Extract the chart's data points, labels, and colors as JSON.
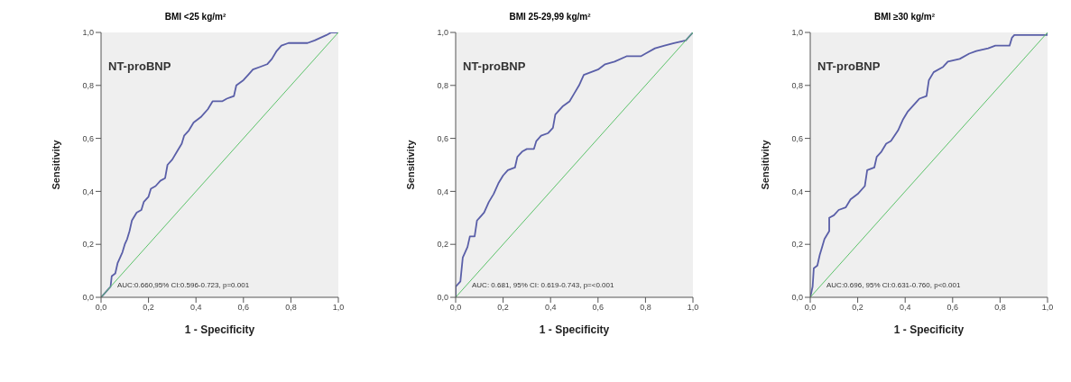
{
  "chart_data": [
    {
      "type": "line",
      "title": "BMI <25 kg/m²",
      "xlabel": "1 - Specificity",
      "ylabel": "Sensitivity",
      "annotations": [
        "NT-proBNP",
        "AUC:0.660,95% CI:0.596-0.723, p=0.001"
      ],
      "xlim": [
        0,
        1
      ],
      "ylim": [
        0,
        1
      ],
      "xticks": [
        {
          "value": 0,
          "label": "0,0"
        },
        {
          "value": 0.2,
          "label": "0,2"
        },
        {
          "value": 0.4,
          "label": "0,4"
        },
        {
          "value": 0.6,
          "label": "0,6"
        },
        {
          "value": 0.8,
          "label": "0,8"
        },
        {
          "value": 1,
          "label": "1,0"
        }
      ],
      "yticks": [
        {
          "value": 0,
          "label": "0,0"
        },
        {
          "value": 0.2,
          "label": "0,2"
        },
        {
          "value": 0.4,
          "label": "0,4"
        },
        {
          "value": 0.6,
          "label": "0,6"
        },
        {
          "value": 0.8,
          "label": "0,8"
        },
        {
          "value": 1,
          "label": "1,0"
        }
      ],
      "grid": false,
      "marker": "none",
      "series": [
        {
          "color": "#5a5fa8",
          "x": [
            0,
            0.01,
            0.03,
            0.04,
            0.045,
            0.06,
            0.07,
            0.09,
            0.1,
            0.11,
            0.12,
            0.13,
            0.15,
            0.17,
            0.18,
            0.2,
            0.21,
            0.23,
            0.25,
            0.27,
            0.28,
            0.3,
            0.32,
            0.34,
            0.35,
            0.37,
            0.39,
            0.42,
            0.45,
            0.47,
            0.51,
            0.53,
            0.56,
            0.57,
            0.6,
            0.62,
            0.64,
            0.67,
            0.7,
            0.72,
            0.74,
            0.76,
            0.79,
            0.87,
            0.9,
            0.95,
            0.97,
            1
          ],
          "values": [
            0,
            0.01,
            0.03,
            0.04,
            0.08,
            0.09,
            0.13,
            0.17,
            0.2,
            0.22,
            0.25,
            0.29,
            0.32,
            0.33,
            0.36,
            0.38,
            0.41,
            0.42,
            0.44,
            0.45,
            0.5,
            0.52,
            0.55,
            0.58,
            0.61,
            0.63,
            0.66,
            0.68,
            0.71,
            0.74,
            0.74,
            0.75,
            0.76,
            0.8,
            0.82,
            0.84,
            0.86,
            0.87,
            0.88,
            0.9,
            0.93,
            0.95,
            0.96,
            0.96,
            0.97,
            0.99,
            1,
            1
          ]
        },
        {
          "color": "#5cc26a",
          "x": [
            0,
            1
          ],
          "values": [
            0,
            1
          ]
        }
      ]
    },
    {
      "type": "line",
      "title": "BMI 25-29,99 kg/m²",
      "xlabel": "1 - Specificity",
      "ylabel": "Sensitivity",
      "annotations": [
        "NT-proBNP",
        "AUC: 0.681, 95% CI: 0.619-0.743, p=<0.001"
      ],
      "xlim": [
        0,
        1
      ],
      "ylim": [
        0,
        1
      ],
      "xticks": [
        {
          "value": 0,
          "label": "0,0"
        },
        {
          "value": 0.2,
          "label": "0,2"
        },
        {
          "value": 0.4,
          "label": "0,4"
        },
        {
          "value": 0.6,
          "label": "0,6"
        },
        {
          "value": 0.8,
          "label": "0,8"
        },
        {
          "value": 1,
          "label": "1,0"
        }
      ],
      "yticks": [
        {
          "value": 0,
          "label": "0,0"
        },
        {
          "value": 0.2,
          "label": "0,2"
        },
        {
          "value": 0.4,
          "label": "0,4"
        },
        {
          "value": 0.6,
          "label": "0,6"
        },
        {
          "value": 0.8,
          "label": "0,8"
        },
        {
          "value": 1,
          "label": "1,0"
        }
      ],
      "grid": false,
      "marker": "none",
      "series": [
        {
          "color": "#5a5fa8",
          "x": [
            0,
            0,
            0.02,
            0.03,
            0.05,
            0.06,
            0.08,
            0.09,
            0.1,
            0.12,
            0.14,
            0.16,
            0.18,
            0.2,
            0.22,
            0.25,
            0.26,
            0.28,
            0.3,
            0.33,
            0.34,
            0.36,
            0.39,
            0.41,
            0.42,
            0.45,
            0.48,
            0.5,
            0.52,
            0.54,
            0.57,
            0.6,
            0.63,
            0.67,
            0.72,
            0.78,
            0.8,
            0.84,
            0.88,
            0.92,
            0.97,
            1
          ],
          "values": [
            0,
            0.04,
            0.06,
            0.15,
            0.19,
            0.23,
            0.23,
            0.29,
            0.3,
            0.32,
            0.36,
            0.39,
            0.43,
            0.46,
            0.48,
            0.49,
            0.53,
            0.55,
            0.56,
            0.56,
            0.59,
            0.61,
            0.62,
            0.64,
            0.69,
            0.72,
            0.74,
            0.77,
            0.8,
            0.84,
            0.85,
            0.86,
            0.88,
            0.89,
            0.91,
            0.91,
            0.92,
            0.94,
            0.95,
            0.96,
            0.97,
            1
          ]
        },
        {
          "color": "#5cc26a",
          "x": [
            0,
            1
          ],
          "values": [
            0,
            1
          ]
        }
      ]
    },
    {
      "type": "line",
      "title": "BMI ≥30 kg/m²",
      "xlabel": "1 - Specificity",
      "ylabel": "Sensitivity",
      "annotations": [
        "NT-proBNP",
        "AUC:0.696, 95% CI:0.631-0.760, p<0.001"
      ],
      "xlim": [
        0,
        1
      ],
      "ylim": [
        0,
        1
      ],
      "xticks": [
        {
          "value": 0,
          "label": "0,0"
        },
        {
          "value": 0.2,
          "label": "0,2"
        },
        {
          "value": 0.4,
          "label": "0,4"
        },
        {
          "value": 0.6,
          "label": "0,6"
        },
        {
          "value": 0.8,
          "label": "0,8"
        },
        {
          "value": 1,
          "label": "1,0"
        }
      ],
      "yticks": [
        {
          "value": 0,
          "label": "0,0"
        },
        {
          "value": 0.2,
          "label": "0,2"
        },
        {
          "value": 0.4,
          "label": "0,4"
        },
        {
          "value": 0.6,
          "label": "0,6"
        },
        {
          "value": 0.8,
          "label": "0,8"
        },
        {
          "value": 1,
          "label": "1,0"
        }
      ],
      "grid": false,
      "marker": "none",
      "series": [
        {
          "color": "#5a5fa8",
          "x": [
            0,
            0.01,
            0.015,
            0.03,
            0.04,
            0.05,
            0.06,
            0.08,
            0.08,
            0.1,
            0.12,
            0.15,
            0.17,
            0.2,
            0.23,
            0.24,
            0.27,
            0.28,
            0.3,
            0.32,
            0.34,
            0.37,
            0.39,
            0.41,
            0.44,
            0.46,
            0.49,
            0.5,
            0.52,
            0.56,
            0.58,
            0.63,
            0.67,
            0.7,
            0.75,
            0.78,
            0.84,
            0.85,
            0.86,
            1,
            1
          ],
          "values": [
            0,
            0.04,
            0.11,
            0.12,
            0.16,
            0.19,
            0.22,
            0.25,
            0.3,
            0.31,
            0.33,
            0.34,
            0.37,
            0.39,
            0.42,
            0.48,
            0.49,
            0.53,
            0.55,
            0.58,
            0.59,
            0.63,
            0.67,
            0.7,
            0.73,
            0.75,
            0.76,
            0.82,
            0.85,
            0.87,
            0.89,
            0.9,
            0.92,
            0.93,
            0.94,
            0.95,
            0.95,
            0.98,
            0.99,
            0.99,
            1
          ]
        },
        {
          "color": "#5cc26a",
          "x": [
            0,
            1
          ],
          "values": [
            0,
            1
          ]
        }
      ]
    }
  ]
}
